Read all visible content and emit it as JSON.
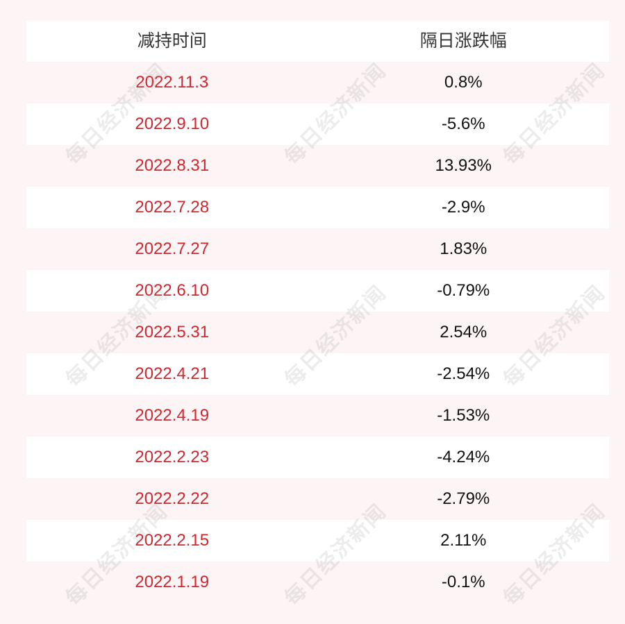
{
  "table": {
    "headers": [
      "减持时间",
      "隔日涨跌幅"
    ],
    "rows": [
      {
        "date": "2022.11.3",
        "change": "0.8%"
      },
      {
        "date": "2022.9.10",
        "change": "-5.6%"
      },
      {
        "date": "2022.8.31",
        "change": "13.93%"
      },
      {
        "date": "2022.7.28",
        "change": "-2.9%"
      },
      {
        "date": "2022.7.27",
        "change": "1.83%"
      },
      {
        "date": "2022.6.10",
        "change": "-0.79%"
      },
      {
        "date": "2022.5.31",
        "change": "2.54%"
      },
      {
        "date": "2022.4.21",
        "change": "-2.54%"
      },
      {
        "date": "2022.4.19",
        "change": "-1.53%"
      },
      {
        "date": "2022.2.23",
        "change": "-4.24%"
      },
      {
        "date": "2022.2.22",
        "change": "-2.79%"
      },
      {
        "date": "2022.2.15",
        "change": "2.11%"
      },
      {
        "date": "2022.1.19",
        "change": "-0.1%"
      }
    ]
  },
  "watermark": "每日经济新闻",
  "colors": {
    "date_text": "#d0272f",
    "value_text": "#111111",
    "background": "#fdf5f5",
    "band": "#ffffff"
  }
}
